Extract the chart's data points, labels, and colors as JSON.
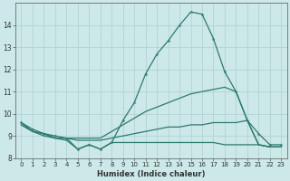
{
  "xlabel": "Humidex (Indice chaleur)",
  "bg_color": "#cce8e8",
  "line_color": "#2d7a6e",
  "grid_color": "#b0d4d0",
  "xlim": [
    -0.5,
    23.5
  ],
  "ylim": [
    8.0,
    15.0
  ],
  "yticks": [
    8,
    9,
    10,
    11,
    12,
    13,
    14
  ],
  "xticks": [
    0,
    1,
    2,
    3,
    4,
    5,
    6,
    7,
    8,
    9,
    10,
    11,
    12,
    13,
    14,
    15,
    16,
    17,
    18,
    19,
    20,
    21,
    22,
    23
  ],
  "line1_x": [
    0,
    1,
    2,
    3,
    4,
    5,
    6,
    7,
    8,
    9,
    10,
    11,
    12,
    13,
    14,
    15,
    16,
    17,
    18,
    19,
    20,
    21,
    22,
    23
  ],
  "line1_y": [
    9.6,
    9.3,
    9.1,
    9.0,
    8.9,
    8.4,
    8.6,
    8.4,
    8.7,
    9.7,
    10.5,
    11.8,
    12.7,
    13.3,
    14.0,
    14.6,
    14.5,
    13.4,
    11.9,
    11.0,
    9.7,
    9.1,
    8.6,
    8.6
  ],
  "line2_x": [
    0,
    1,
    2,
    3,
    4,
    5,
    6,
    7,
    8,
    9,
    10,
    11,
    12,
    13,
    14,
    15,
    16,
    17,
    18,
    19,
    20,
    21,
    22,
    23
  ],
  "line2_y": [
    9.6,
    9.2,
    9.1,
    8.9,
    8.9,
    8.9,
    8.9,
    8.9,
    9.2,
    9.5,
    9.8,
    10.1,
    10.3,
    10.5,
    10.7,
    10.9,
    11.0,
    11.1,
    11.2,
    11.0,
    9.7,
    8.6,
    8.5,
    8.5
  ],
  "line3_x": [
    0,
    1,
    2,
    3,
    4,
    5,
    6,
    7,
    8,
    9,
    10,
    11,
    12,
    13,
    14,
    15,
    16,
    17,
    18,
    19,
    20,
    21,
    22,
    23
  ],
  "line3_y": [
    9.5,
    9.2,
    9.1,
    8.9,
    8.9,
    8.8,
    8.8,
    8.8,
    8.9,
    9.0,
    9.1,
    9.2,
    9.3,
    9.4,
    9.4,
    9.5,
    9.5,
    9.6,
    9.6,
    9.6,
    9.7,
    8.6,
    8.5,
    8.5
  ],
  "line4_x": [
    0,
    1,
    2,
    3,
    4,
    5,
    6,
    7,
    8,
    9,
    10,
    11,
    12,
    13,
    14,
    15,
    16,
    17,
    18,
    19,
    20,
    21,
    22,
    23
  ],
  "line4_y": [
    9.5,
    9.2,
    9.0,
    8.9,
    8.8,
    8.4,
    8.6,
    8.4,
    8.7,
    8.7,
    8.7,
    8.7,
    8.7,
    8.7,
    8.7,
    8.7,
    8.7,
    8.7,
    8.6,
    8.6,
    8.6,
    8.6,
    8.5,
    8.5
  ]
}
